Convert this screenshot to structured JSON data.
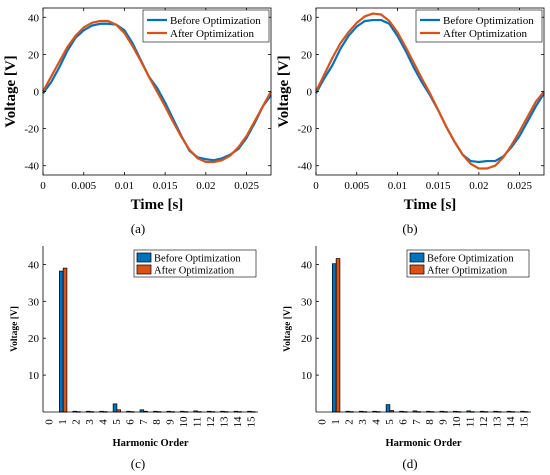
{
  "figure": {
    "panel_labels": [
      "(a)",
      "(b)",
      "(c)",
      "(d)"
    ]
  },
  "colors": {
    "before": "#0072BD",
    "after": "#D95319",
    "bar_edge": "#000000",
    "axis": "#000000",
    "text": "#000000"
  },
  "chart_data": [
    {
      "id": "a",
      "type": "line",
      "title": "",
      "xlabel": "Time [s]",
      "ylabel": "Voltage [V]",
      "xlim": [
        0,
        0.028
      ],
      "ylim": [
        -45,
        45
      ],
      "xticks": [
        0,
        0.005,
        0.01,
        0.015,
        0.02,
        0.025
      ],
      "xtick_labels": [
        "0",
        "0.005",
        "0.01",
        "0.015",
        "0.02",
        "0.025"
      ],
      "yticks": [
        -40,
        -20,
        0,
        20,
        40
      ],
      "ytick_labels": [
        "-40",
        "-20",
        "0",
        "20",
        "40"
      ],
      "legend": "top-right",
      "grid": false,
      "series": [
        {
          "name": "Before Optimization",
          "color": "#0072BD",
          "x": [
            0,
            0.001,
            0.002,
            0.003,
            0.004,
            0.005,
            0.006,
            0.007,
            0.008,
            0.009,
            0.01,
            0.011,
            0.012,
            0.013,
            0.014,
            0.015,
            0.016,
            0.017,
            0.018,
            0.019,
            0.02,
            0.021,
            0.022,
            0.023,
            0.024,
            0.025,
            0.026,
            0.027,
            0.028
          ],
          "y": [
            -1,
            5,
            13,
            22,
            29,
            33,
            35.5,
            36.5,
            36.5,
            36,
            33,
            26,
            17,
            8,
            2,
            -6,
            -15,
            -24,
            -32,
            -35.5,
            -36.5,
            -37,
            -36,
            -34,
            -31,
            -25,
            -17,
            -8,
            -2
          ]
        },
        {
          "name": "After Optimization",
          "color": "#D95319",
          "x": [
            0,
            0.001,
            0.002,
            0.003,
            0.004,
            0.005,
            0.006,
            0.007,
            0.008,
            0.009,
            0.01,
            0.011,
            0.012,
            0.013,
            0.014,
            0.015,
            0.016,
            0.017,
            0.018,
            0.019,
            0.02,
            0.021,
            0.022,
            0.023,
            0.024,
            0.025,
            0.026,
            0.027,
            0.028
          ],
          "y": [
            0,
            8,
            16,
            24,
            30,
            34.5,
            37,
            38,
            38,
            36,
            31.5,
            24.5,
            16.5,
            8,
            0,
            -8,
            -16.5,
            -24.5,
            -31.5,
            -36,
            -38,
            -38,
            -37,
            -34.5,
            -30,
            -24,
            -16,
            -8,
            0
          ]
        }
      ]
    },
    {
      "id": "b",
      "type": "line",
      "title": "",
      "xlabel": "Time [s]",
      "ylabel": "Voltage [V]",
      "xlim": [
        0,
        0.028
      ],
      "ylim": [
        -45,
        45
      ],
      "xticks": [
        0,
        0.005,
        0.01,
        0.015,
        0.02,
        0.025
      ],
      "xtick_labels": [
        "0",
        "0.005",
        "0.01",
        "0.015",
        "0.02",
        "0.025"
      ],
      "yticks": [
        -40,
        -20,
        0,
        20,
        40
      ],
      "ytick_labels": [
        "-40",
        "-20",
        "0",
        "20",
        "40"
      ],
      "legend": "top-right",
      "grid": false,
      "series": [
        {
          "name": "Before Optimization",
          "color": "#0072BD",
          "x": [
            0,
            0.001,
            0.002,
            0.003,
            0.004,
            0.005,
            0.006,
            0.007,
            0.008,
            0.009,
            0.01,
            0.011,
            0.012,
            0.013,
            0.014,
            0.015,
            0.016,
            0.017,
            0.018,
            0.019,
            0.02,
            0.021,
            0.022,
            0.023,
            0.024,
            0.025,
            0.026,
            0.027,
            0.028
          ],
          "y": [
            -1,
            7,
            14,
            23,
            30,
            35,
            38,
            38.5,
            38.5,
            36.5,
            30,
            22,
            13,
            5,
            -2,
            -10,
            -19,
            -27,
            -34,
            -37.5,
            -38,
            -37.5,
            -37.5,
            -35,
            -30,
            -24,
            -16,
            -8,
            -1
          ]
        },
        {
          "name": "After Optimization",
          "color": "#D95319",
          "x": [
            0,
            0.001,
            0.002,
            0.003,
            0.004,
            0.005,
            0.006,
            0.007,
            0.008,
            0.009,
            0.01,
            0.011,
            0.012,
            0.013,
            0.014,
            0.015,
            0.016,
            0.017,
            0.018,
            0.019,
            0.02,
            0.021,
            0.022,
            0.023,
            0.024,
            0.025,
            0.026,
            0.027,
            0.028
          ],
          "y": [
            0,
            9,
            18,
            26,
            32,
            37,
            40.5,
            42,
            41.5,
            38,
            32,
            24,
            15.5,
            7,
            -1,
            -10,
            -19,
            -27,
            -34,
            -39,
            -41.5,
            -41.5,
            -40,
            -35.5,
            -29,
            -21.5,
            -13.5,
            -5.5,
            0
          ]
        }
      ]
    },
    {
      "id": "c",
      "type": "bar",
      "title": "",
      "xlabel": "Harmonic Order",
      "ylabel": "Voltage [V]",
      "categories": [
        "0",
        "1",
        "2",
        "3",
        "4",
        "5",
        "6",
        "7",
        "8",
        "9",
        "10",
        "11",
        "12",
        "13",
        "14",
        "15"
      ],
      "ylim": [
        0,
        45
      ],
      "yticks": [
        10,
        20,
        30,
        40
      ],
      "ytick_labels": [
        "10",
        "20",
        "30",
        "40"
      ],
      "legend": "top-right",
      "grid": false,
      "series": [
        {
          "name": "Before Optimization",
          "color": "#0072BD",
          "values": [
            0,
            38.2,
            0.2,
            0.2,
            0.2,
            2.2,
            0.2,
            0.6,
            0.2,
            0.2,
            0.2,
            0.3,
            0.2,
            0.2,
            0.2,
            0.2
          ]
        },
        {
          "name": "After Optimization",
          "color": "#D95319",
          "values": [
            0,
            39.0,
            0.1,
            0.1,
            0.1,
            0.6,
            0.1,
            0.2,
            0.1,
            0.1,
            0.1,
            0.1,
            0.1,
            0.1,
            0.1,
            0.1
          ]
        }
      ]
    },
    {
      "id": "d",
      "type": "bar",
      "title": "",
      "xlabel": "Harmonic Order",
      "ylabel": "Voltage [V]",
      "categories": [
        "0",
        "1",
        "2",
        "3",
        "4",
        "5",
        "6",
        "7",
        "8",
        "9",
        "10",
        "11",
        "12",
        "13",
        "14",
        "15"
      ],
      "ylim": [
        0,
        45
      ],
      "yticks": [
        10,
        20,
        30,
        40
      ],
      "ytick_labels": [
        "10",
        "20",
        "30",
        "40"
      ],
      "legend": "top-right",
      "grid": false,
      "series": [
        {
          "name": "Before Optimization",
          "color": "#0072BD",
          "values": [
            0,
            40.2,
            0.2,
            0.2,
            0.2,
            2.0,
            0.2,
            0.3,
            0.2,
            0.2,
            0.2,
            0.3,
            0.2,
            0.2,
            0.2,
            0.2
          ]
        },
        {
          "name": "After Optimization",
          "color": "#D95319",
          "values": [
            0,
            41.6,
            0.1,
            0.1,
            0.1,
            0.4,
            0.1,
            0.1,
            0.1,
            0.1,
            0.1,
            0.1,
            0.1,
            0.1,
            0.1,
            0.1
          ]
        }
      ]
    }
  ]
}
